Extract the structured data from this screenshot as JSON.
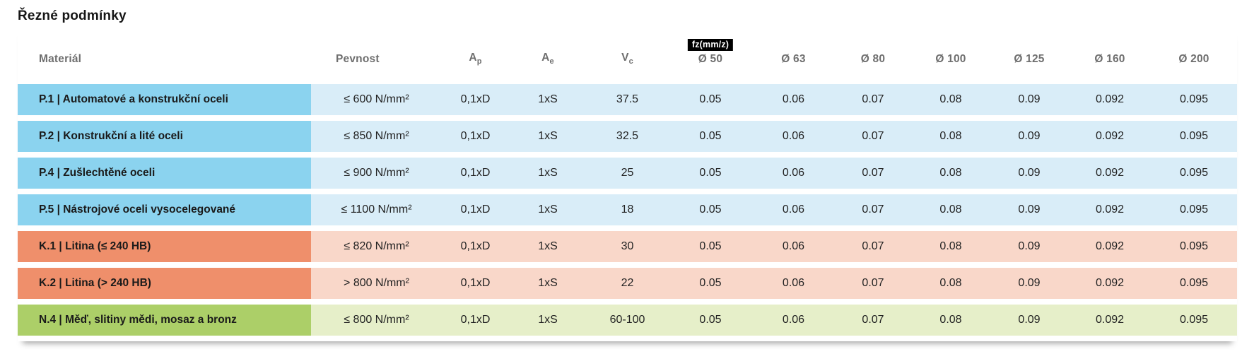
{
  "title": "Řezné podmínky",
  "table": {
    "col_headers": {
      "material": "Materiál",
      "strength": "Pevnost",
      "ap": {
        "base": "A",
        "sub": "p"
      },
      "ae": {
        "base": "A",
        "sub": "e"
      },
      "vc": {
        "base": "V",
        "sub": "c"
      },
      "fz_badge": "fz(mm/z)",
      "diameters": [
        "Ø 50",
        "Ø 63",
        "Ø 80",
        "Ø 100",
        "Ø 125",
        "Ø 160",
        "Ø 200"
      ]
    },
    "rows": [
      {
        "group": "P",
        "material": "P.1 | Automatové a konstrukční oceli",
        "strength": "≤ 600 N/mm²",
        "ap": "0,1xD",
        "ae": "1xS",
        "vc": "37.5",
        "fz": [
          "0.05",
          "0.06",
          "0.07",
          "0.08",
          "0.09",
          "0.092",
          "0.095"
        ]
      },
      {
        "group": "P",
        "material": "P.2 | Konstrukční a lité oceli",
        "strength": "≤ 850 N/mm²",
        "ap": "0,1xD",
        "ae": "1xS",
        "vc": "32.5",
        "fz": [
          "0.05",
          "0.06",
          "0.07",
          "0.08",
          "0.09",
          "0.092",
          "0.095"
        ]
      },
      {
        "group": "P",
        "material": "P.4 | Zušlechtěné oceli",
        "strength": "≤ 900 N/mm²",
        "ap": "0,1xD",
        "ae": "1xS",
        "vc": "25",
        "fz": [
          "0.05",
          "0.06",
          "0.07",
          "0.08",
          "0.09",
          "0.092",
          "0.095"
        ]
      },
      {
        "group": "P",
        "material": "P.5 | Nástrojové oceli vysocelegované",
        "strength": "≤ 1100 N/mm²",
        "ap": "0,1xD",
        "ae": "1xS",
        "vc": "18",
        "fz": [
          "0.05",
          "0.06",
          "0.07",
          "0.08",
          "0.09",
          "0.092",
          "0.095"
        ]
      },
      {
        "group": "K",
        "material": "K.1 | Litina (≤ 240 HB)",
        "strength": "≤ 820 N/mm²",
        "ap": "0,1xD",
        "ae": "1xS",
        "vc": "30",
        "fz": [
          "0.05",
          "0.06",
          "0.07",
          "0.08",
          "0.09",
          "0.092",
          "0.095"
        ]
      },
      {
        "group": "K",
        "material": "K.2 | Litina (> 240 HB)",
        "strength": "> 800 N/mm²",
        "ap": "0,1xD",
        "ae": "1xS",
        "vc": "22",
        "fz": [
          "0.05",
          "0.06",
          "0.07",
          "0.08",
          "0.09",
          "0.092",
          "0.095"
        ]
      },
      {
        "group": "N",
        "material": "N.4 | Měď, slitiny mědi, mosaz a bronz",
        "strength": "≤ 800 N/mm²",
        "ap": "0,1xD",
        "ae": "1xS",
        "vc": "60-100",
        "fz": [
          "0.05",
          "0.06",
          "0.07",
          "0.08",
          "0.09",
          "0.092",
          "0.095"
        ]
      }
    ]
  },
  "colors": {
    "P": {
      "dark": "#8bd3ef",
      "light": "#d9edf8"
    },
    "K": {
      "dark": "#ef8f6b",
      "light": "#f9d7c9"
    },
    "N": {
      "dark": "#accf68",
      "light": "#e6efc9"
    },
    "badge": {
      "bg": "#000000",
      "fg": "#ffffff"
    },
    "header_text": "#6e6e6e"
  }
}
